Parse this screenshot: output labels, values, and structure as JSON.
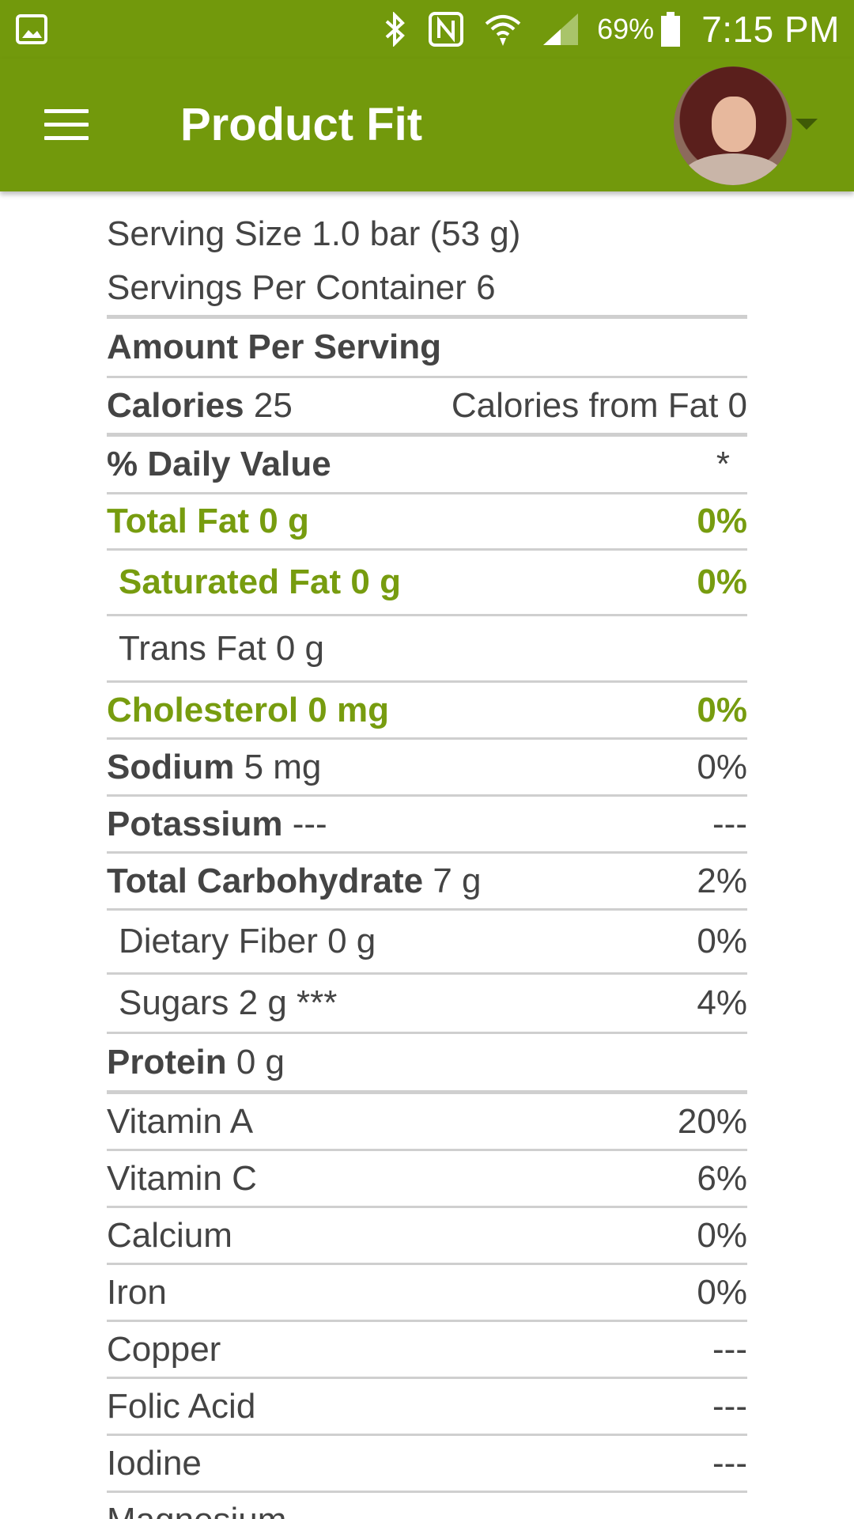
{
  "status_bar": {
    "battery_percent": "69%",
    "time": "7:15 PM",
    "icons": [
      "gallery-icon",
      "bluetooth-icon",
      "nfc-icon",
      "wifi-icon",
      "signal-icon",
      "battery-icon"
    ]
  },
  "app_bar": {
    "title": "Product Fit",
    "menu_icon": "hamburger-menu-icon",
    "account_icon": "user-avatar"
  },
  "colors": {
    "brand_green": "#72990c",
    "highlight_green": "#779c0f"
  },
  "nutrition": {
    "serving_size": "Serving Size 1.0 bar (53 g)",
    "servings_per_container": "Servings Per Container 6",
    "amount_per_serving": "Amount Per Serving",
    "calories_label": "Calories",
    "calories_value": "25",
    "calories_from_fat": "Calories from Fat 0",
    "daily_value_label": "% Daily Value",
    "daily_value_mark": "*",
    "rows": [
      {
        "label": "Total Fat 0 g",
        "value": "",
        "dv": "0%"
      },
      {
        "label": "Saturated Fat 0 g",
        "value": "",
        "dv": "0%"
      },
      {
        "label": "Trans Fat 0 g",
        "value": "",
        "dv": ""
      },
      {
        "label": "Cholesterol 0 mg",
        "value": "",
        "dv": "0%"
      },
      {
        "label": "Sodium",
        "value": "5 mg",
        "dv": "0%"
      },
      {
        "label": "Potassium",
        "value": "---",
        "dv": "---"
      },
      {
        "label": "Total Carbohydrate",
        "value": "7 g",
        "dv": "2%"
      },
      {
        "label": "Dietary Fiber 0 g",
        "value": "",
        "dv": "0%"
      },
      {
        "label": "Sugars 2 g ***",
        "value": "",
        "dv": "4%"
      },
      {
        "label": "Protein",
        "value": "0 g",
        "dv": ""
      }
    ],
    "vitamins": [
      {
        "label": "Vitamin A",
        "dv": "20%"
      },
      {
        "label": "Vitamin C",
        "dv": "6%"
      },
      {
        "label": "Calcium",
        "dv": "0%"
      },
      {
        "label": "Iron",
        "dv": "0%"
      },
      {
        "label": "Copper",
        "dv": "---"
      },
      {
        "label": "Folic Acid",
        "dv": "---"
      },
      {
        "label": "Iodine",
        "dv": "---"
      },
      {
        "label": "Magnesium",
        "dv": ""
      }
    ]
  }
}
